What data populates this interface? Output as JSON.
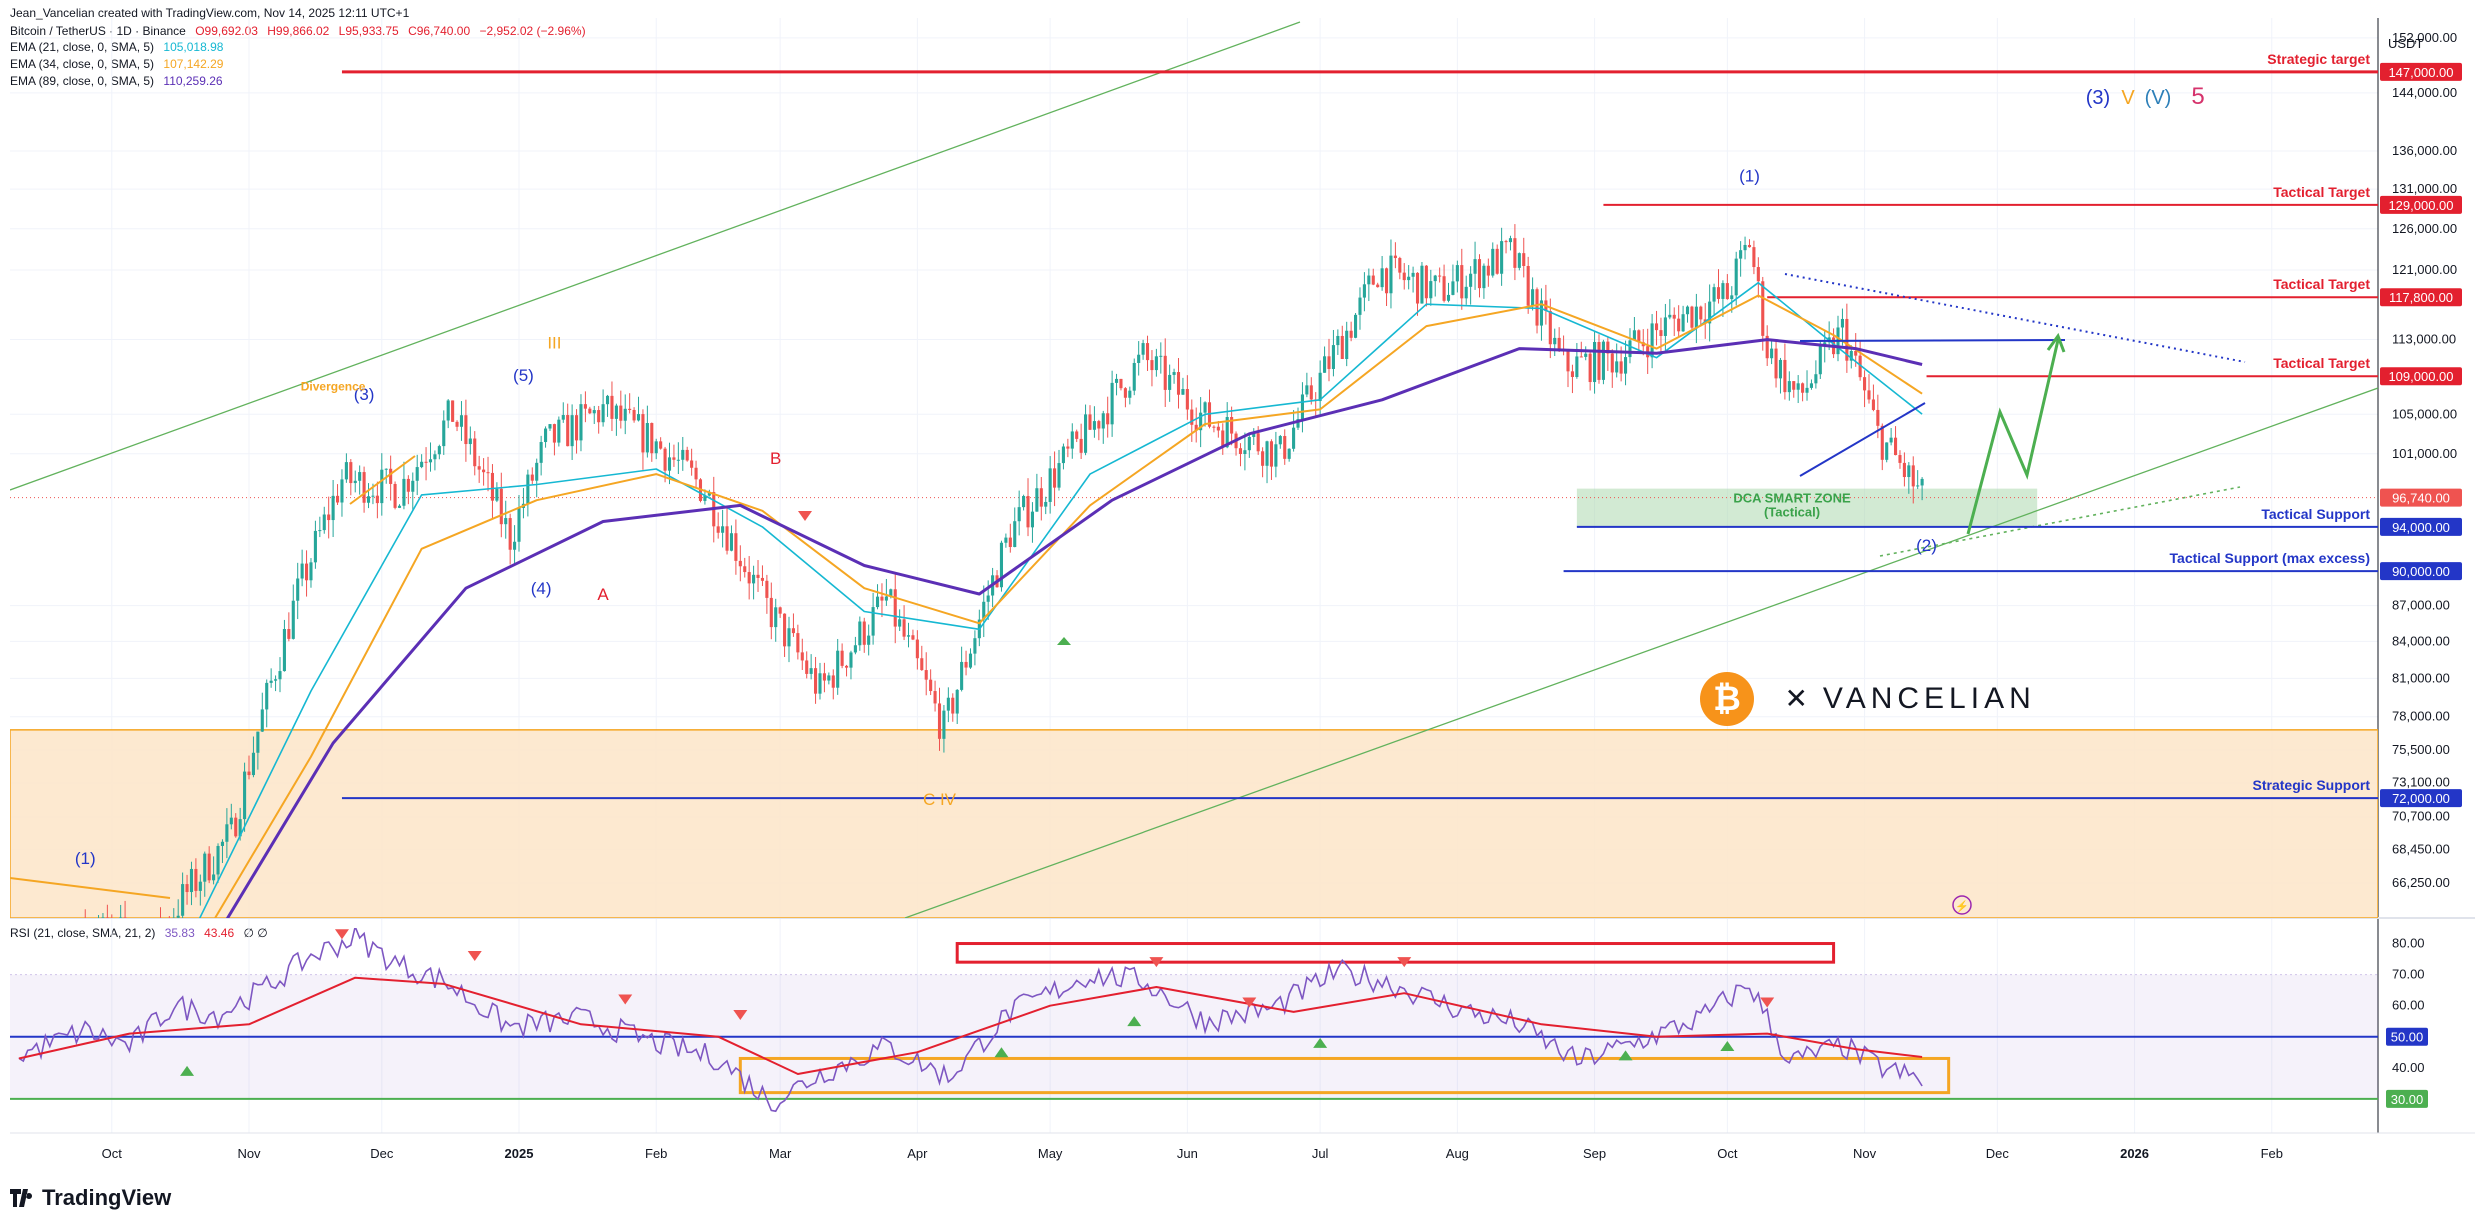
{
  "header": {
    "credit": "Jean_Vancelian created with TradingView.com, Nov 14, 2025 12:11 UTC+1",
    "symbol": "Bitcoin / TetherUS · 1D · Binance",
    "ohlc": {
      "open": "O99,692.03",
      "high": "H99,866.02",
      "low": "L95,933.75",
      "close": "C96,740.00",
      "change": "−2,952.02 (−2.96%)"
    },
    "indicators": [
      {
        "label": "EMA (21, close, 0, SMA, 5)",
        "value": "105,018.98",
        "color": "#16b8d2"
      },
      {
        "label": "EMA (34, close, 0, SMA, 5)",
        "value": "107,142.29",
        "color": "#f5a623"
      },
      {
        "label": "EMA (89, close, 0, SMA, 5)",
        "value": "110,259.26",
        "color": "#5b2fb5"
      }
    ],
    "rsi": {
      "label": "RSI (21, close, SMA, 21, 2)",
      "value1": "35.83",
      "value2": "43.46",
      "extra": "∅ ∅"
    }
  },
  "currency": "USDT",
  "footer": {
    "brand": "TradingView"
  },
  "logo": {
    "coin_symbol": "₿",
    "word": "VANCELIAN"
  },
  "colors": {
    "up": "#26a69a",
    "down": "#ef5350",
    "red_line": "#e3202f",
    "blue_line": "#2336c7",
    "green": "#4caf50",
    "orange": "#f5a623",
    "purple": "#5b2fb5",
    "cyan": "#16b8d2"
  },
  "chart_data": [
    {
      "type": "line",
      "title": "Bitcoin / TetherUS · 1D · Binance",
      "x_ticks": [
        "Oct",
        "Nov",
        "Dec",
        "2025",
        "Feb",
        "Mar",
        "Apr",
        "May",
        "Jun",
        "Jul",
        "Aug",
        "Sep",
        "Oct",
        "Nov",
        "Dec",
        "2026",
        "Feb"
      ],
      "y_ticks": [
        "152,000.00",
        "144,000.00",
        "136,000.00",
        "131,000.00",
        "126,000.00",
        "121,000.00",
        "113,000.00",
        "105,000.00",
        "101,000.00",
        "87,000.00",
        "84,000.00",
        "81,000.00",
        "78,000.00",
        "75,500.00",
        "73,100.00",
        "70,700.00",
        "68,450.00",
        "66,250.00"
      ],
      "x_range": [
        "2024-09-08",
        "2026-02-25"
      ],
      "y_range": [
        64000,
        155000
      ],
      "y_scale": "log",
      "series": [
        {
          "name": "Bitcoin / TetherUS",
          "style": "candles",
          "x": [
            "2024-09-25",
            "2024-10-10",
            "2024-10-28",
            "2024-11-12",
            "2024-11-22",
            "2024-12-05",
            "2024-12-17",
            "2024-12-30",
            "2025-01-07",
            "2025-01-20",
            "2025-02-01",
            "2025-02-12",
            "2025-02-25",
            "2025-03-10",
            "2025-03-25",
            "2025-04-07",
            "2025-04-22",
            "2025-05-10",
            "2025-05-22",
            "2025-06-05",
            "2025-06-22",
            "2025-07-10",
            "2025-07-14",
            "2025-07-28",
            "2025-08-13",
            "2025-08-25",
            "2025-09-06",
            "2025-09-20",
            "2025-10-01",
            "2025-10-06",
            "2025-10-10",
            "2025-10-17",
            "2025-10-27",
            "2025-11-04",
            "2025-11-14"
          ],
          "values": [
            63500,
            62500,
            69500,
            88000,
            98500,
            97500,
            105000,
            93000,
            102000,
            105500,
            102000,
            97500,
            87500,
            80000,
            87500,
            77000,
            93500,
            103500,
            111000,
            104500,
            101000,
            116500,
            121000,
            118500,
            123000,
            110000,
            111000,
            115500,
            118000,
            124500,
            112000,
            106500,
            114000,
            103000,
            96740
          ]
        },
        {
          "name": "EMA (21, close, 0, SMA, 5)",
          "x": [
            "2024-09-25",
            "2024-10-20",
            "2024-11-15",
            "2024-12-10",
            "2025-01-05",
            "2025-02-01",
            "2025-02-25",
            "2025-03-20",
            "2025-04-15",
            "2025-05-10",
            "2025-06-05",
            "2025-07-01",
            "2025-07-25",
            "2025-08-20",
            "2025-09-15",
            "2025-10-08",
            "2025-10-25",
            "2025-11-14"
          ],
          "values": [
            62000,
            63500,
            80000,
            97000,
            98000,
            99500,
            94000,
            86500,
            85000,
            99000,
            105000,
            106500,
            117000,
            116500,
            111000,
            119500,
            112500,
            105019
          ]
        },
        {
          "name": "EMA (34, close, 0, SMA, 5)",
          "x": [
            "2024-09-25",
            "2024-10-20",
            "2024-11-15",
            "2024-12-10",
            "2025-01-05",
            "2025-02-01",
            "2025-02-25",
            "2025-03-20",
            "2025-04-15",
            "2025-05-10",
            "2025-06-05",
            "2025-07-01",
            "2025-07-25",
            "2025-08-20",
            "2025-09-15",
            "2025-10-08",
            "2025-10-25",
            "2025-11-14"
          ],
          "values": [
            61500,
            62000,
            75000,
            92000,
            96500,
            99000,
            95500,
            88500,
            85500,
            96000,
            104000,
            105500,
            114500,
            117000,
            112000,
            118000,
            113500,
            107142
          ]
        },
        {
          "name": "EMA (89, close, 0, SMA, 5)",
          "x": [
            "2024-10-25",
            "2024-11-20",
            "2024-12-20",
            "2025-01-20",
            "2025-02-20",
            "2025-03-20",
            "2025-04-15",
            "2025-05-15",
            "2025-06-15",
            "2025-07-15",
            "2025-08-15",
            "2025-09-15",
            "2025-10-10",
            "2025-10-30",
            "2025-11-14"
          ],
          "values": [
            63000,
            76000,
            88500,
            94500,
            96000,
            90500,
            88000,
            96500,
            103000,
            106500,
            112000,
            111500,
            113000,
            112000,
            110259
          ]
        }
      ],
      "levels": [
        {
          "value": 147000,
          "label": "Strategic target",
          "price": "147,000.00",
          "color": "#e3202f"
        },
        {
          "value": 129000,
          "label": "Tactical Target",
          "price": "129,000.00",
          "color": "#e3202f"
        },
        {
          "value": 117800,
          "label": "Tactical Target",
          "price": "117,800.00",
          "color": "#e3202f"
        },
        {
          "value": 109000,
          "label": "Tactical Target",
          "price": "109,000.00",
          "color": "#e3202f"
        },
        {
          "value": 94000,
          "label": "Tactical Support",
          "price": "94,000.00",
          "color": "#2336c7"
        },
        {
          "value": 90000,
          "label": "Tactical Support (max excess)",
          "price": "90,000.00",
          "color": "#2336c7"
        },
        {
          "value": 72000,
          "label": "Strategic Support",
          "price": "72,000.00",
          "color": "#2336c7"
        }
      ],
      "last_price": {
        "value": 96740,
        "price": "96,740.00"
      },
      "annotations": {
        "dca_zone": {
          "title": "DCA SMART ZONE",
          "subtitle": "(Tactical)",
          "range": [
            94000,
            97600
          ]
        },
        "demand_zone": {
          "range": [
            64000,
            77000
          ]
        },
        "wave_labels": [
          {
            "text": "(1)",
            "x": "2024-09-25",
            "y": 67500,
            "color": "#2336c7"
          },
          {
            "text": "(3)",
            "x": "2024-11-27",
            "y": 106500,
            "color": "#2336c7"
          },
          {
            "text": "(5)",
            "x": "2025-01-02",
            "y": 108500,
            "color": "#2336c7"
          },
          {
            "text": "III",
            "x": "2025-01-09",
            "y": 112000,
            "color": "#f5a623"
          },
          {
            "text": "(4)",
            "x": "2025-01-06",
            "y": 88000,
            "color": "#2336c7"
          },
          {
            "text": "A",
            "x": "2025-01-20",
            "y": 87500,
            "color": "#e3202f"
          },
          {
            "text": "B",
            "x": "2025-02-28",
            "y": 100000,
            "color": "#e3202f"
          },
          {
            "text": "C IV",
            "x": "2025-04-06",
            "y": 71500,
            "color": "#f5a623"
          },
          {
            "text": "(1)",
            "x": "2025-10-06",
            "y": 132000,
            "color": "#2336c7"
          },
          {
            "text": "(2)",
            "x": "2025-11-15",
            "y": 91800,
            "color": "#2336c7"
          },
          {
            "text": "Divergence",
            "x": "2024-11-20",
            "y": 107500,
            "color": "#f5a623"
          }
        ],
        "target_labels": [
          {
            "text": "(3)",
            "color": "#2336c7"
          },
          {
            "text": "V",
            "color": "#f5a623"
          },
          {
            "text": "(V)",
            "color": "#2c7fb8"
          },
          {
            "text": "5",
            "color": "#d6336c"
          }
        ]
      }
    },
    {
      "type": "line",
      "title": "RSI (21, close, SMA, 21, 2)",
      "y_ticks": [
        "80.00",
        "70.00",
        "60.00",
        "40.00"
      ],
      "y_range": [
        19,
        85
      ],
      "levels": [
        {
          "value": 50,
          "label": "50.00"
        },
        {
          "value": 30,
          "label": "30.00"
        }
      ],
      "series": [
        {
          "name": "RSI",
          "x": [
            "2024-09-10",
            "2024-09-25",
            "2024-10-05",
            "2024-10-15",
            "2024-10-25",
            "2024-11-05",
            "2024-11-15",
            "2024-11-25",
            "2024-12-05",
            "2024-12-15",
            "2024-12-30",
            "2025-01-15",
            "2025-02-01",
            "2025-02-15",
            "2025-02-27",
            "2025-03-10",
            "2025-03-25",
            "2025-04-08",
            "2025-04-22",
            "2025-05-10",
            "2025-05-22",
            "2025-06-05",
            "2025-06-20",
            "2025-07-05",
            "2025-07-15",
            "2025-08-01",
            "2025-08-15",
            "2025-08-28",
            "2025-09-10",
            "2025-09-25",
            "2025-10-06",
            "2025-10-15",
            "2025-10-27",
            "2025-11-05",
            "2025-11-14"
          ],
          "values": [
            44,
            52,
            47,
            60,
            57,
            66,
            76,
            82,
            73,
            68,
            53,
            56,
            48,
            43,
            29,
            38,
            47,
            37,
            58,
            70,
            68,
            55,
            59,
            71,
            68,
            59,
            54,
            42,
            48,
            56,
            67,
            42,
            47,
            40,
            35.83
          ]
        },
        {
          "name": "RSI-based MA",
          "x": [
            "2024-09-10",
            "2024-10-05",
            "2024-11-01",
            "2024-11-25",
            "2024-12-15",
            "2025-01-15",
            "2025-02-15",
            "2025-03-05",
            "2025-04-01",
            "2025-05-01",
            "2025-05-25",
            "2025-06-25",
            "2025-07-20",
            "2025-08-20",
            "2025-09-15",
            "2025-10-10",
            "2025-10-30",
            "2025-11-14"
          ],
          "values": [
            43,
            51,
            54,
            69,
            67,
            54,
            50,
            38,
            45,
            60,
            66,
            58,
            64,
            54,
            50,
            51,
            46,
            43.46
          ]
        }
      ],
      "boxes": [
        {
          "range": [
            74,
            80
          ],
          "x": [
            "2025-04-10",
            "2025-10-25"
          ],
          "color": "#e3202f"
        },
        {
          "range": [
            32,
            43
          ],
          "x": [
            "2025-02-20",
            "2025-11-20"
          ],
          "color": "#f5a623"
        }
      ]
    }
  ]
}
